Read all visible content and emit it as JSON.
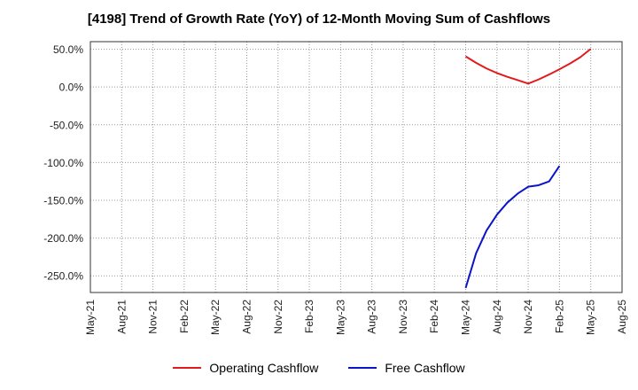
{
  "chart_data": {
    "type": "line",
    "title": "[4198]  Trend of Growth Rate (YoY) of 12-Month Moving Sum of Cashflows",
    "xlabel": "",
    "ylabel": "",
    "ylim": [
      -272,
      60
    ],
    "grid": true,
    "legend_position": "bottom",
    "x_tick_labels": [
      "May-21",
      "Aug-21",
      "Nov-21",
      "Feb-22",
      "May-22",
      "Aug-22",
      "Nov-22",
      "Feb-23",
      "May-23",
      "Aug-23",
      "Nov-23",
      "Feb-24",
      "May-24",
      "Aug-24",
      "Nov-24",
      "Feb-25",
      "May-25",
      "Aug-25"
    ],
    "y_ticks": [
      50,
      0,
      -50,
      -100,
      -150,
      -200,
      -250
    ],
    "y_tick_labels": [
      "50.0%",
      "0.0%",
      "-50.0%",
      "-100.0%",
      "-150.0%",
      "-200.0%",
      "-250.0%"
    ],
    "series": [
      {
        "name": "Operating Cashflow",
        "color": "#e31a1c",
        "points": [
          [
            "May-24",
            40.5
          ],
          [
            "Jun-24",
            32.0
          ],
          [
            "Jul-24",
            24.5
          ],
          [
            "Aug-24",
            18.5
          ],
          [
            "Sep-24",
            13.5
          ],
          [
            "Oct-24",
            9.0
          ],
          [
            "Nov-24",
            4.5
          ],
          [
            "Dec-24",
            10.0
          ],
          [
            "Jan-25",
            16.5
          ],
          [
            "Feb-25",
            23.5
          ],
          [
            "Mar-25",
            31.0
          ],
          [
            "Apr-25",
            39.5
          ],
          [
            "May-25",
            50.5
          ]
        ]
      },
      {
        "name": "Free Cashflow",
        "color": "#0a14c8",
        "points": [
          [
            "May-24",
            -266.0
          ],
          [
            "Jun-24",
            -220.0
          ],
          [
            "Jul-24",
            -190.0
          ],
          [
            "Aug-24",
            -169.0
          ],
          [
            "Sep-24",
            -153.0
          ],
          [
            "Oct-24",
            -141.0
          ],
          [
            "Nov-24",
            -132.0
          ],
          [
            "Dec-24",
            -130.0
          ],
          [
            "Jan-25",
            -125.0
          ],
          [
            "Feb-25",
            -104.5
          ]
        ]
      }
    ]
  }
}
